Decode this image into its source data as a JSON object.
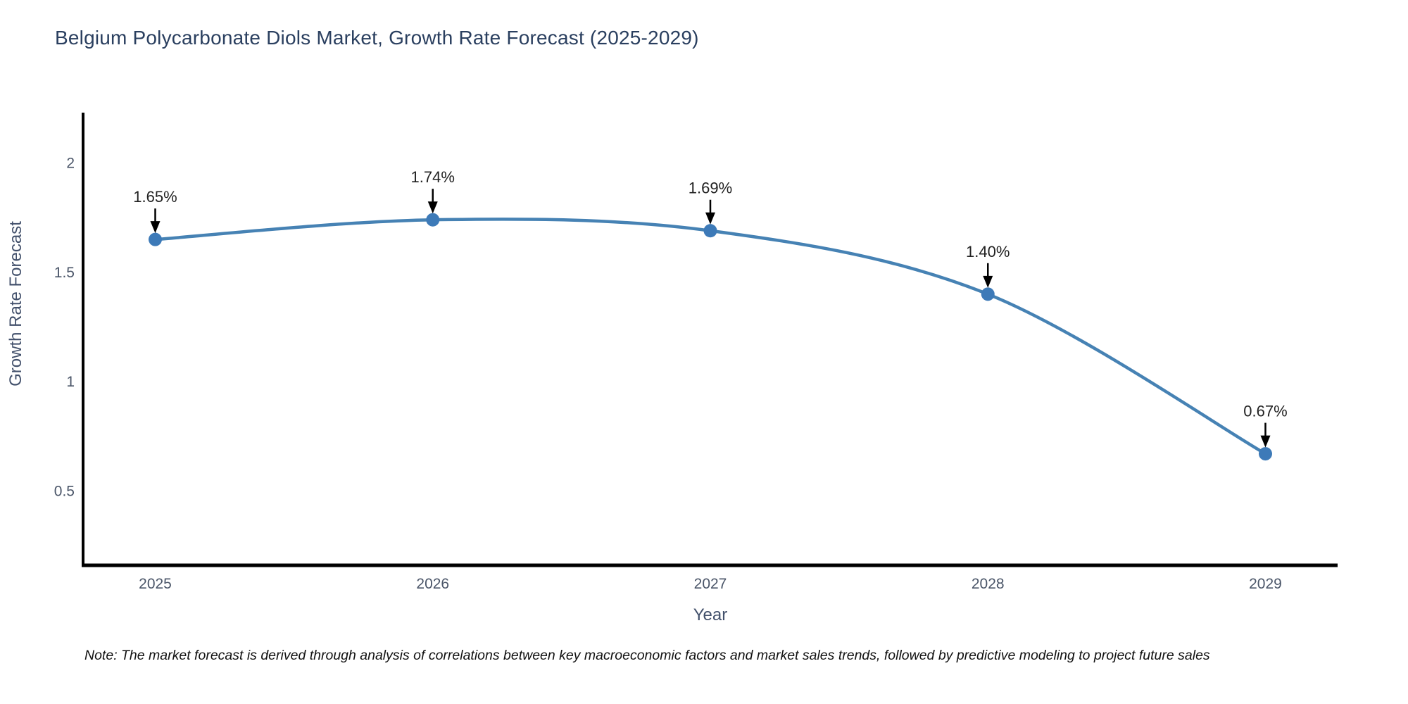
{
  "title": "Belgium Polycarbonate Diols Market, Growth Rate Forecast (2025-2029)",
  "note": "Note: The market forecast is derived through analysis of correlations between key macroeconomic factors and market sales trends, followed by predictive modeling to project future sales",
  "chart_data": {
    "type": "line",
    "title": "Belgium Polycarbonate Diols Market, Growth Rate Forecast (2025-2029)",
    "xlabel": "Year",
    "ylabel": "Growth Rate Forecast",
    "x": [
      2025,
      2026,
      2027,
      2028,
      2029
    ],
    "values": [
      1.65,
      1.74,
      1.69,
      1.4,
      0.67
    ],
    "point_labels": [
      "1.65%",
      "1.74%",
      "1.69%",
      "1.40%",
      "0.67%"
    ],
    "xticks": [
      "2025",
      "2026",
      "2027",
      "2028",
      "2029"
    ],
    "yticks": [
      0.5,
      1,
      1.5,
      2
    ],
    "xlim": [
      2024.74,
      2029.26
    ],
    "ylim": [
      0.16,
      2.23
    ],
    "grid": false,
    "legend": "none",
    "line_color": "#4682b4",
    "marker_color": "#3d7ab8",
    "arrow_color": "#000000",
    "annotation_text_color": "#222222",
    "axis_color": "#000000",
    "tick_label_color": "#4a5568",
    "axis_title_color": "#42506b",
    "title_color": "#2a3f5f"
  }
}
